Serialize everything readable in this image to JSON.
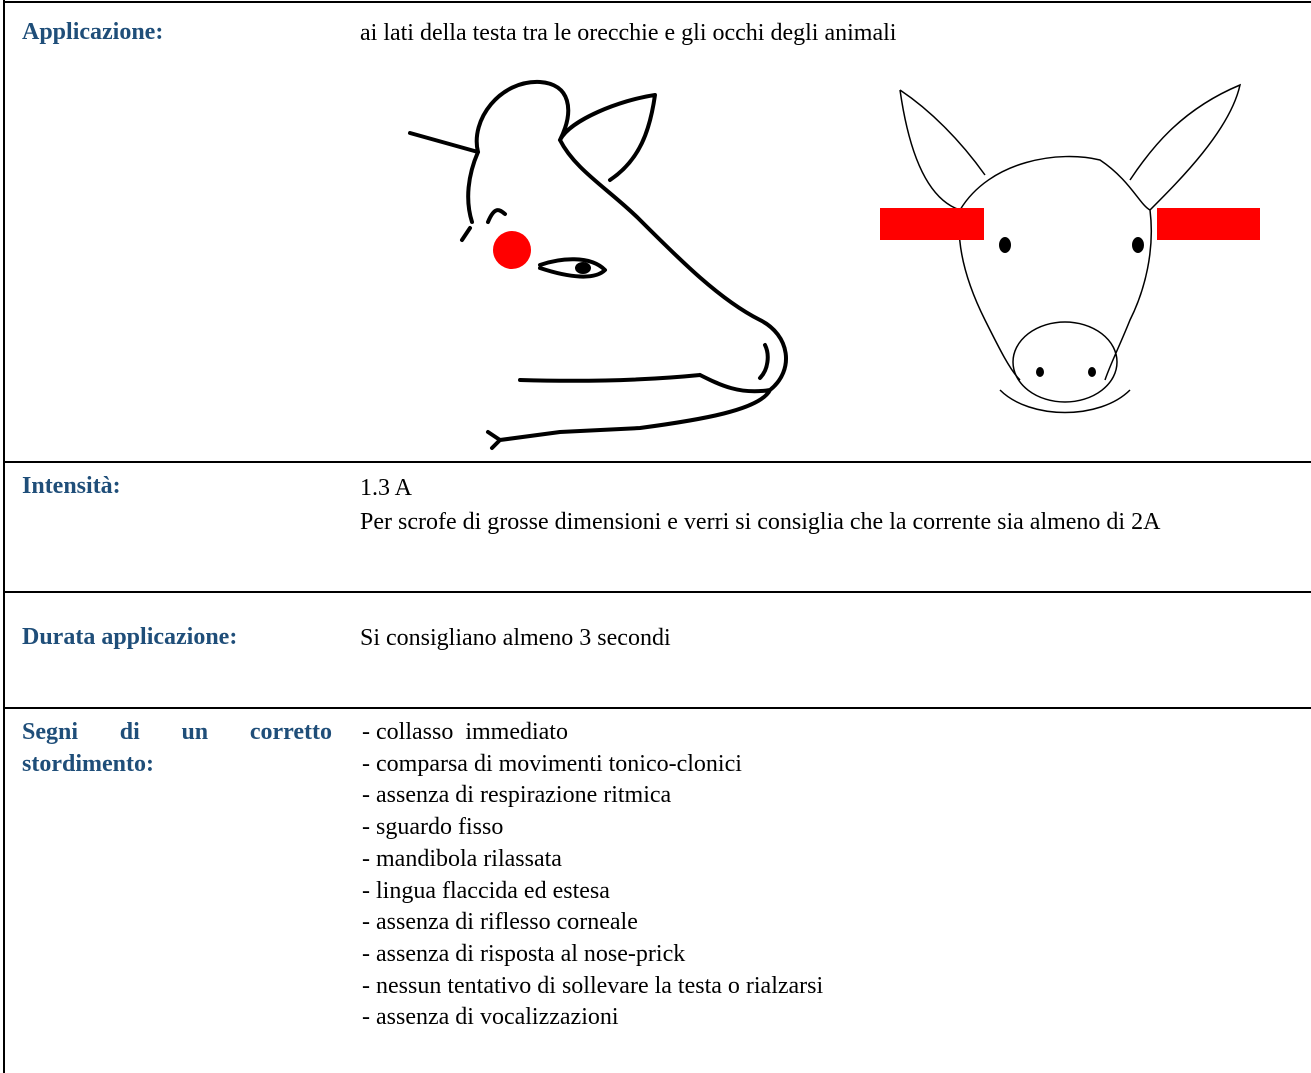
{
  "table": {
    "rows": [
      {
        "label": "Applicazione:",
        "lines": [
          "ai lati della testa tra le orecchie e gli occhi degli animali"
        ]
      },
      {
        "label": "Intensità:",
        "lines": [
          "1.3 A",
          "Per scrofe di grosse dimensioni e verri si consiglia che la corrente sia almeno di 2A"
        ]
      },
      {
        "label": "Durata applicazione:",
        "lines": [
          "Si consigliano almeno 3 secondi"
        ]
      },
      {
        "label": "Segni di un corretto stordimento:",
        "lines": [
          "- collasso  immediato",
          "- comparsa di movimenti tonico-clonici",
          "- assenza di respirazione ritmica",
          "- sguardo fisso",
          "- mandibola rilassata",
          "- lingua flaccida ed estesa",
          "- assenza di riflesso corneale",
          "- assenza di risposta al nose-prick",
          "- nessun tentativo di sollevare la testa o rialzarsi",
          "- assenza di vocalizzazioni"
        ]
      }
    ]
  }
}
